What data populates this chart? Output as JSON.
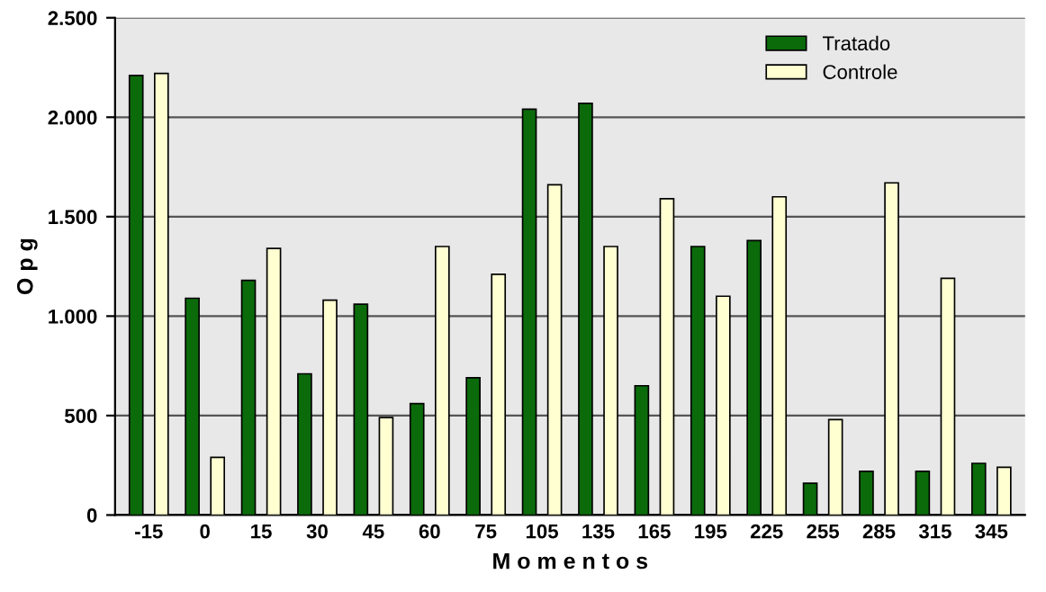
{
  "chart_data": {
    "type": "bar",
    "xlabel": "M o m e n t o s",
    "ylabel": "O p g",
    "categories": [
      "-15",
      "0",
      "15",
      "30",
      "45",
      "60",
      "75",
      "105",
      "135",
      "165",
      "195",
      "225",
      "255",
      "285",
      "315",
      "345"
    ],
    "series": [
      {
        "name": "Tratado",
        "color": "#0b6b0b",
        "values": [
          2210,
          1090,
          1180,
          710,
          1060,
          560,
          690,
          2040,
          2070,
          650,
          1350,
          1380,
          160,
          220,
          220,
          260
        ]
      },
      {
        "name": "Controle",
        "color": "#ffffd2",
        "values": [
          2220,
          290,
          1340,
          1080,
          490,
          1350,
          1210,
          1660,
          1350,
          1590,
          1100,
          1600,
          480,
          1670,
          1190,
          240
        ]
      }
    ],
    "ylim": [
      0,
      2500
    ],
    "yticks": [
      0,
      {
        "value": 500,
        "label": "500"
      },
      {
        "value": 1000,
        "label": "1.000"
      },
      {
        "value": 1500,
        "label": "1.500"
      },
      {
        "value": 2000,
        "label": "2.000"
      },
      {
        "value": 2500,
        "label": "2.500"
      }
    ],
    "grid": "y",
    "legend": "top right"
  }
}
